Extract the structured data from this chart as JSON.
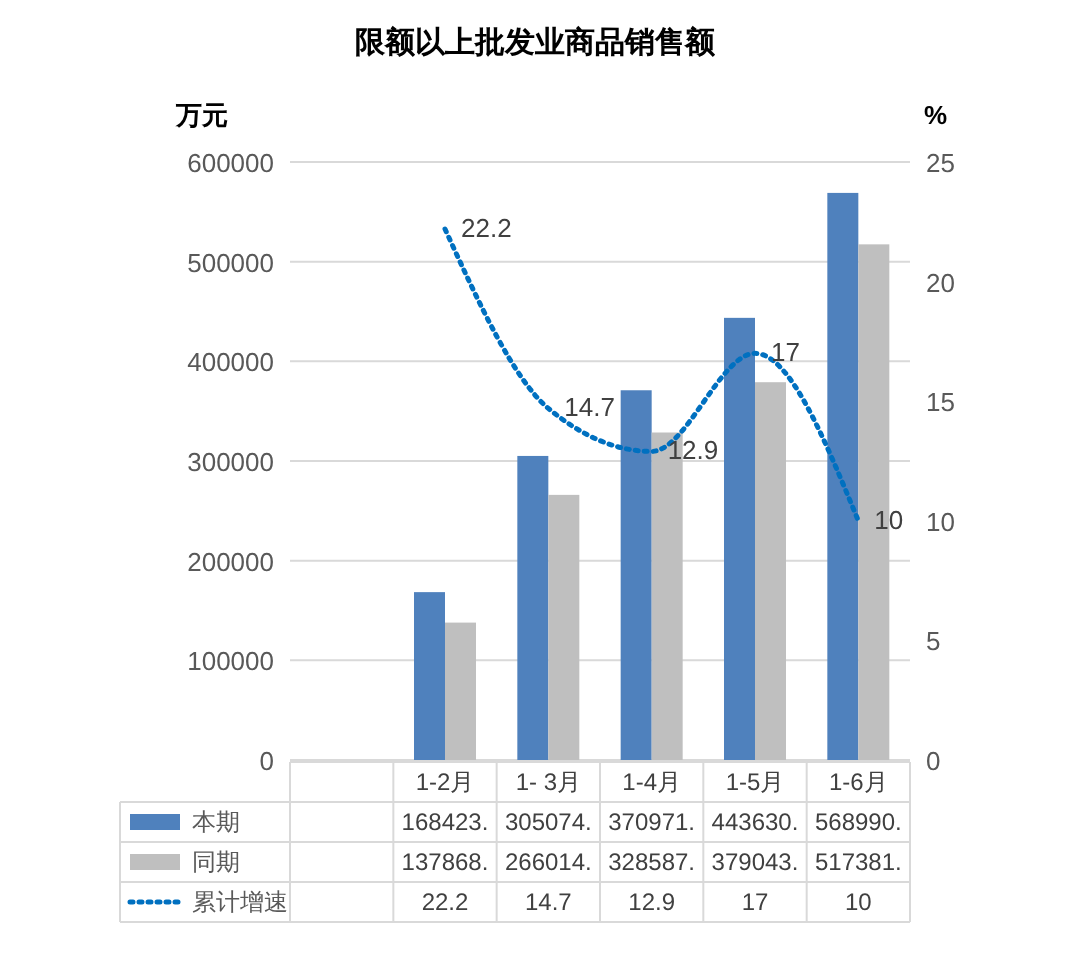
{
  "chart_data": {
    "type": "bar",
    "title": "限额以上批发业商品销售额",
    "ylabel": "万元",
    "y2label": "%",
    "categories": [
      null,
      "1-2月",
      "1- 3月",
      "1-4月",
      "1-5月",
      "1-6月"
    ],
    "series": [
      {
        "name": "本期",
        "color": "#4f81bd",
        "values": [
          null,
          168423,
          305074,
          370971,
          443630,
          568990
        ],
        "value_labels": [
          null,
          "168423.",
          "305074.",
          "370971.",
          "443630.",
          "568990."
        ]
      },
      {
        "name": "同期",
        "color": "#bfbfbf",
        "values": [
          null,
          137868,
          266014,
          328587,
          379043,
          517381
        ],
        "value_labels": [
          null,
          "137868.",
          "266014.",
          "328587.",
          "379043.",
          "517381."
        ]
      },
      {
        "name": "累计增速",
        "type": "line",
        "axis": "y2",
        "color": "#0070c0",
        "line_style": "dotted",
        "marker": "none",
        "values": [
          null,
          22.2,
          14.7,
          12.9,
          17,
          10
        ],
        "value_labels": [
          null,
          "22.2",
          "14.7",
          "12.9",
          "17",
          "10"
        ]
      }
    ],
    "ylim": [
      0,
      600000
    ],
    "yticks": [
      0,
      100000,
      200000,
      300000,
      400000,
      500000,
      600000
    ],
    "y2lim": [
      0,
      25
    ],
    "y2ticks": [
      0,
      5,
      10,
      15,
      20,
      25
    ],
    "grid": "y",
    "legend": "bottom"
  }
}
